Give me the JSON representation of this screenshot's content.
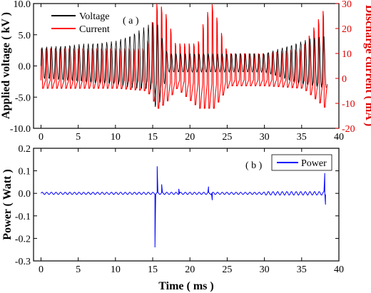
{
  "chart_data": [
    {
      "panel_label": "( a )",
      "type": "line",
      "xlim": [
        -1,
        40
      ],
      "x_ticks": [
        "0",
        "5",
        "10",
        "15",
        "20",
        "25",
        "30",
        "35",
        "40"
      ],
      "ylabel_left": "Applied voltage ( kV )",
      "ylim_left": [
        -10,
        10
      ],
      "y_ticks_left": [
        "-10.0",
        "-5.0",
        "0.0",
        "5.0",
        "10.0"
      ],
      "ylabel_right": "Discharge current ( mA )",
      "ylim_right": [
        -20,
        30
      ],
      "y_ticks_right": [
        "-20",
        "-10",
        "0",
        "10",
        "20",
        "30"
      ],
      "legend_position": "top-left",
      "colors": {
        "voltage": "#000000",
        "current": "#ff0000"
      },
      "series": [
        {
          "name": "Voltage",
          "axis": "left",
          "description": "oscillating signal, amplitude growing from about 3 kV to 6 kV over 0-15 ms and 35-38 ms, with a spike near -8 kV at 15.5 ms",
          "envelope_x": [
            0,
            5,
            10,
            12,
            15,
            15.5,
            17,
            20,
            25,
            30,
            35,
            38
          ],
          "envelope_max": [
            3,
            3.5,
            4,
            5,
            7,
            7.5,
            2,
            2,
            2,
            2,
            4,
            5
          ],
          "envelope_min": [
            -2,
            -2.5,
            -3,
            -3.5,
            -4,
            -8,
            -1,
            -1,
            -1,
            -1,
            -3,
            -3.5
          ]
        },
        {
          "name": "Current",
          "axis": "right",
          "description": "periodic pulses between about -4 mA and 12 mA, bursts up to 30 mA near 15-17 ms and 21-23 ms",
          "envelope_x": [
            0,
            5,
            10,
            14,
            15.5,
            16.5,
            18,
            21,
            22,
            23,
            25,
            30,
            35,
            38
          ],
          "envelope_max": [
            12,
            12,
            12,
            12,
            30,
            28,
            14,
            14,
            25,
            30,
            10,
            10,
            12,
            28
          ],
          "envelope_min": [
            -4,
            -4,
            -4,
            -5,
            -12,
            -10,
            -4,
            -12,
            -12,
            -12,
            -3,
            -3,
            -4,
            -12
          ]
        }
      ]
    },
    {
      "panel_label": "( b )",
      "type": "line",
      "xlim": [
        -1,
        40
      ],
      "x_ticks": [
        "0",
        "5",
        "10",
        "15",
        "20",
        "25",
        "30",
        "35",
        "40"
      ],
      "xlabel": "Time ( ms )",
      "ylabel": "Power ( Watt )",
      "ylim": [
        -0.3,
        0.2
      ],
      "y_ticks": [
        "-0.3",
        "-0.2",
        "-0.1",
        "0.0",
        "0.1",
        "0.2"
      ],
      "legend_position": "top-right",
      "series": [
        {
          "name": "Power",
          "color": "#0000ff",
          "description": "near zero with small oscillations, spike to -0.24 W at 15.3 ms and 0.12 W at 15.6 ms, peak 0.09 W at 38 ms",
          "spikes": [
            {
              "x": 15.3,
              "y": -0.24
            },
            {
              "x": 15.6,
              "y": 0.12
            },
            {
              "x": 16.2,
              "y": 0.04
            },
            {
              "x": 18.5,
              "y": 0.02
            },
            {
              "x": 22.5,
              "y": 0.03
            },
            {
              "x": 23,
              "y": -0.03
            },
            {
              "x": 38.1,
              "y": 0.09
            },
            {
              "x": 38.2,
              "y": -0.05
            }
          ]
        }
      ]
    }
  ]
}
